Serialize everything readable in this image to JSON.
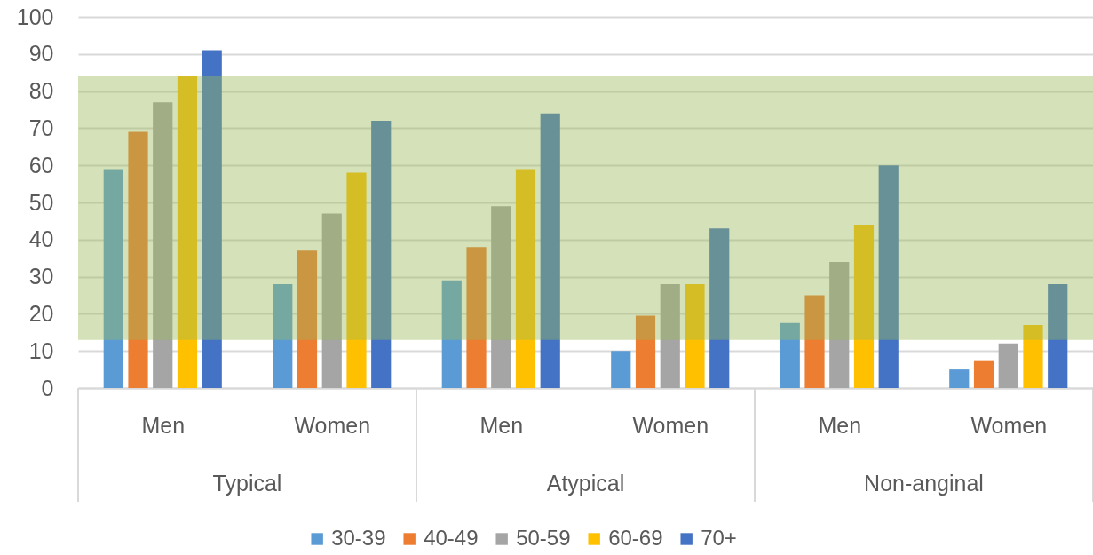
{
  "chart_data": {
    "type": "bar",
    "categories": [
      "Men",
      "Women",
      "Men",
      "Women",
      "Men",
      "Women"
    ],
    "series": [
      {
        "name": "30-39",
        "color": "#5b9bd5",
        "values": [
          59,
          28,
          29,
          10,
          17.5,
          5
        ]
      },
      {
        "name": "40-49",
        "color": "#ed7d31",
        "values": [
          69,
          37,
          38,
          19.5,
          25,
          7.5
        ]
      },
      {
        "name": "50-59",
        "color": "#a5a5a5",
        "values": [
          77,
          47,
          49,
          28,
          34,
          12
        ]
      },
      {
        "name": "60-69",
        "color": "#ffc000",
        "values": [
          84,
          58,
          59,
          28,
          44,
          17
        ]
      },
      {
        "name": "70+",
        "color": "#4472c4",
        "values": [
          91,
          72,
          74,
          43,
          60,
          28
        ]
      }
    ],
    "ylim": [
      0,
      100
    ],
    "yticks": [
      0,
      10,
      20,
      30,
      40,
      50,
      60,
      70,
      80,
      90,
      100
    ],
    "grid": "y",
    "legend": "bottom",
    "bands": [
      {
        "axis": "y",
        "from": 13,
        "to": 84,
        "color": "#9bbb59"
      }
    ],
    "annotations": [
      "Typical",
      "Atypical",
      "Non-anginal"
    ]
  }
}
